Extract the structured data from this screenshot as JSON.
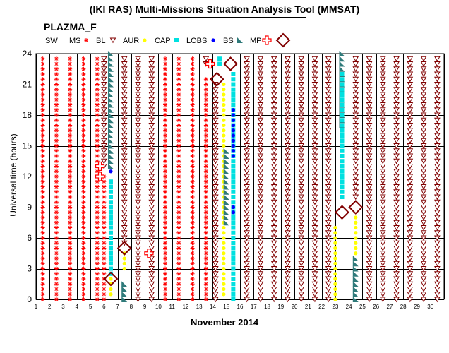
{
  "title": "(IKI RAS) Multi-Missions Situation Analysis Tool (MMSAT)",
  "mission": "PLAZMA_F",
  "ylabel": "Universal time (hours)",
  "xlabel": "November 2014",
  "legend": [
    {
      "label": "SW",
      "key": "sw",
      "symbol": "none",
      "color": "#000000"
    },
    {
      "label": "MS",
      "key": "ms",
      "symbol": "asterisk",
      "color": "#ff0000"
    },
    {
      "label": "BL",
      "key": "bl",
      "symbol": "triangle-down",
      "color": "#800000"
    },
    {
      "label": "AUR",
      "key": "aur",
      "symbol": "dot",
      "color": "#ffff00"
    },
    {
      "label": "CAP",
      "key": "cap",
      "symbol": "square",
      "color": "#00e0e0"
    },
    {
      "label": "LOBS",
      "key": "lobs",
      "symbol": "dot",
      "color": "#0000ff"
    },
    {
      "label": "BS",
      "key": "bs",
      "symbol": "wedge",
      "color": "#2f7a7a"
    },
    {
      "label": "MP",
      "key": "mp",
      "symbol": "cross",
      "color": "#ff0000"
    },
    {
      "label": "",
      "key": "diamond",
      "symbol": "diamond",
      "color": "#800000"
    }
  ],
  "chart_data": {
    "type": "scatter",
    "x_domain": [
      1,
      31
    ],
    "xticks": [
      "1",
      "2",
      "3",
      "4",
      "5",
      "6",
      "7",
      "8",
      "9",
      "10",
      "11",
      "12",
      "13",
      "14",
      "15",
      "16",
      "17",
      "18",
      "19",
      "20",
      "21",
      "22",
      "23",
      "24",
      "25",
      "26",
      "27",
      "28",
      "29",
      "30"
    ],
    "ylim": [
      0,
      24
    ],
    "yticks": [
      "0",
      "3",
      "6",
      "9",
      "12",
      "15",
      "18",
      "21",
      "24"
    ],
    "grid": true,
    "grid_x_step_days": 1,
    "grid_y_step_hours": 3,
    "legend_position": "top",
    "sample_step_hours": 0.5,
    "intervals": [
      {
        "region": "ms",
        "day": 1.5,
        "y0": 0,
        "y1": 23.5
      },
      {
        "region": "ms",
        "day": 2.5,
        "y0": 0,
        "y1": 23.5
      },
      {
        "region": "ms",
        "day": 3.5,
        "y0": 0,
        "y1": 23.5
      },
      {
        "region": "ms",
        "day": 4.5,
        "y0": 0,
        "y1": 23.5
      },
      {
        "region": "ms",
        "day": 5.5,
        "y0": 0,
        "y1": 23.5
      },
      {
        "region": "ms",
        "day": 6.0,
        "y0": 0,
        "y1": 12.0
      },
      {
        "region": "bl",
        "day": 6.0,
        "y0": 13.0,
        "y1": 23.5
      },
      {
        "region": "bs",
        "day": 6.5,
        "y0": 13.0,
        "y1": 24.0
      },
      {
        "region": "cap",
        "day": 6.5,
        "y0": 2.5,
        "y1": 11.5
      },
      {
        "region": "lobs",
        "day": 6.5,
        "y0": 12.5,
        "y1": 12.5
      },
      {
        "region": "aur",
        "day": 6.5,
        "y0": 0.5,
        "y1": 2.0
      },
      {
        "region": "bs",
        "day": 7.5,
        "y0": 0,
        "y1": 1.5
      },
      {
        "region": "aur",
        "day": 7.5,
        "y0": 3.0,
        "y1": 4.5
      },
      {
        "region": "bl",
        "day": 7.5,
        "y0": 5.5,
        "y1": 23.5
      },
      {
        "region": "bl",
        "day": 8.5,
        "y0": 0,
        "y1": 23.5
      },
      {
        "region": "bl",
        "day": 9.5,
        "y0": 0,
        "y1": 23.5
      },
      {
        "region": "ms",
        "day": 10.5,
        "y0": 0,
        "y1": 23.5
      },
      {
        "region": "ms",
        "day": 11.5,
        "y0": 0,
        "y1": 23.5
      },
      {
        "region": "ms",
        "day": 12.5,
        "y0": 0,
        "y1": 23.5
      },
      {
        "region": "ms",
        "day": 13.5,
        "y0": 0,
        "y1": 21.5
      },
      {
        "region": "bl",
        "day": 13.5,
        "y0": 23.0,
        "y1": 23.5
      },
      {
        "region": "bl",
        "day": 14.2,
        "y0": 0,
        "y1": 21.0
      },
      {
        "region": "cap",
        "day": 14.5,
        "y0": 23.0,
        "y1": 23.5
      },
      {
        "region": "aur",
        "day": 14.8,
        "y0": 0.5,
        "y1": 21.0
      },
      {
        "region": "bs",
        "day": 15.0,
        "y0": 7.5,
        "y1": 14.5
      },
      {
        "region": "cap",
        "day": 15.5,
        "y0": 0,
        "y1": 22.0
      },
      {
        "region": "lobs",
        "day": 15.5,
        "y0": 8.5,
        "y1": 9.0
      },
      {
        "region": "lobs",
        "day": 15.5,
        "y0": 14.0,
        "y1": 18.5
      },
      {
        "region": "bl",
        "day": 16.5,
        "y0": 0,
        "y1": 23.5
      },
      {
        "region": "bl",
        "day": 17.5,
        "y0": 0,
        "y1": 23.5
      },
      {
        "region": "bl",
        "day": 18.5,
        "y0": 0,
        "y1": 23.5
      },
      {
        "region": "bl",
        "day": 19.5,
        "y0": 0,
        "y1": 23.5
      },
      {
        "region": "bl",
        "day": 20.5,
        "y0": 0,
        "y1": 23.5
      },
      {
        "region": "bl",
        "day": 21.5,
        "y0": 0,
        "y1": 23.5
      },
      {
        "region": "bl",
        "day": 22.5,
        "y0": 0,
        "y1": 23.5
      },
      {
        "region": "aur",
        "day": 23.0,
        "y0": 0,
        "y1": 7.0
      },
      {
        "region": "bs",
        "day": 23.5,
        "y0": 17.0,
        "y1": 24.0
      },
      {
        "region": "cap",
        "day": 23.5,
        "y0": 10.0,
        "y1": 22.0
      },
      {
        "region": "bs",
        "day": 24.5,
        "y0": 0,
        "y1": 4.0
      },
      {
        "region": "aur",
        "day": 24.5,
        "y0": 4.5,
        "y1": 8.0
      },
      {
        "region": "bl",
        "day": 24.5,
        "y0": 10.0,
        "y1": 23.5
      },
      {
        "region": "bl",
        "day": 25.5,
        "y0": 0,
        "y1": 23.5
      },
      {
        "region": "bl",
        "day": 26.5,
        "y0": 0,
        "y1": 23.5
      },
      {
        "region": "bl",
        "day": 27.5,
        "y0": 0,
        "y1": 23.5
      },
      {
        "region": "bl",
        "day": 28.5,
        "y0": 0,
        "y1": 23.5
      },
      {
        "region": "bl",
        "day": 29.5,
        "y0": 0,
        "y1": 23.5
      },
      {
        "region": "bl",
        "day": 30.5,
        "y0": 0,
        "y1": 23.5
      }
    ],
    "markers": [
      {
        "region": "mp",
        "day": 5.7,
        "hour": 13.0
      },
      {
        "region": "mp",
        "day": 5.7,
        "hour": 12.0
      },
      {
        "region": "mp",
        "day": 9.3,
        "hour": 4.5
      },
      {
        "region": "mp",
        "day": 13.8,
        "hour": 23.0
      },
      {
        "region": "diamond",
        "day": 6.5,
        "hour": 2.0
      },
      {
        "region": "diamond",
        "day": 7.5,
        "hour": 5.0
      },
      {
        "region": "diamond",
        "day": 14.3,
        "hour": 21.5
      },
      {
        "region": "diamond",
        "day": 15.3,
        "hour": 23.0
      },
      {
        "region": "diamond",
        "day": 23.5,
        "hour": 8.5
      },
      {
        "region": "diamond",
        "day": 24.5,
        "hour": 9.0
      }
    ]
  }
}
